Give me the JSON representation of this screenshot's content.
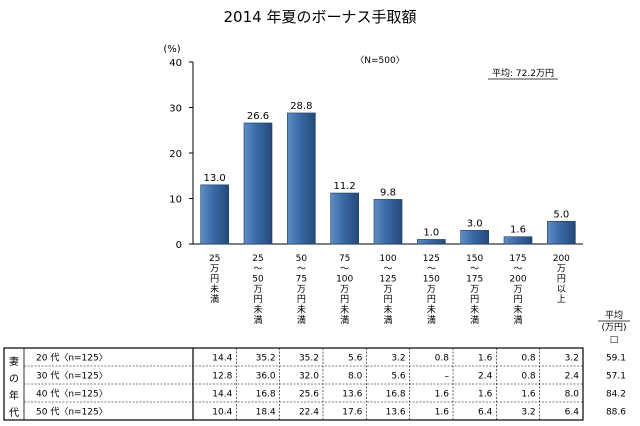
{
  "chart_data": {
    "type": "bar",
    "title": "2014 年夏のボーナス手取額",
    "unit_label": "(%)",
    "sample_label": "〈N=500〉",
    "average_label": "平均: 72.2万円",
    "ylim": [
      0,
      40
    ],
    "yticks": [
      "0",
      "10",
      "20",
      "30",
      "40"
    ],
    "grid": false,
    "categories": [
      [
        "25",
        "万",
        "円",
        "未",
        "満"
      ],
      [
        "25",
        "〜",
        "50",
        "万",
        "円",
        "未",
        "満"
      ],
      [
        "50",
        "〜",
        "75",
        "万",
        "円",
        "未",
        "満"
      ],
      [
        "75",
        "〜",
        "100",
        "万",
        "円",
        "未",
        "満"
      ],
      [
        "100",
        "〜",
        "125",
        "万",
        "円",
        "未",
        "満"
      ],
      [
        "125",
        "〜",
        "150",
        "万",
        "円",
        "未",
        "満"
      ],
      [
        "150",
        "〜",
        "175",
        "万",
        "円",
        "未",
        "満"
      ],
      [
        "175",
        "〜",
        "200",
        "万",
        "円",
        "未",
        "満"
      ],
      [
        "200",
        "万",
        "円",
        "以",
        "上"
      ]
    ],
    "values": [
      13.0,
      26.6,
      28.8,
      11.2,
      9.8,
      1.0,
      3.0,
      1.6,
      5.0
    ],
    "value_labels": [
      "13.0",
      "26.6",
      "28.8",
      "11.2",
      "9.8",
      "1.0",
      "3.0",
      "1.6",
      "5.0"
    ],
    "colors": {
      "bar": "#2e5a8c",
      "bar_light": "#5f8dc4"
    }
  },
  "table": {
    "group_label": [
      "妻",
      "の",
      "年",
      "代"
    ],
    "avg_header": [
      "平均",
      "(万円)",
      "□"
    ],
    "rows": [
      {
        "label": "20 代〈n=125〉",
        "cells": [
          "14.4",
          "35.2",
          "35.2",
          "5.6",
          "3.2",
          "0.8",
          "1.6",
          "0.8",
          "3.2"
        ],
        "avg": "59.1"
      },
      {
        "label": "30 代〈n=125〉",
        "cells": [
          "12.8",
          "36.0",
          "32.0",
          "8.0",
          "5.6",
          "–",
          "2.4",
          "0.8",
          "2.4"
        ],
        "avg": "57.1"
      },
      {
        "label": "40 代〈n=125〉",
        "cells": [
          "14.4",
          "16.8",
          "25.6",
          "13.6",
          "16.8",
          "1.6",
          "1.6",
          "1.6",
          "8.0"
        ],
        "avg": "84.2"
      },
      {
        "label": "50 代〈n=125〉",
        "cells": [
          "10.4",
          "18.4",
          "22.4",
          "17.6",
          "13.6",
          "1.6",
          "6.4",
          "3.2",
          "6.4"
        ],
        "avg": "88.6"
      }
    ]
  }
}
